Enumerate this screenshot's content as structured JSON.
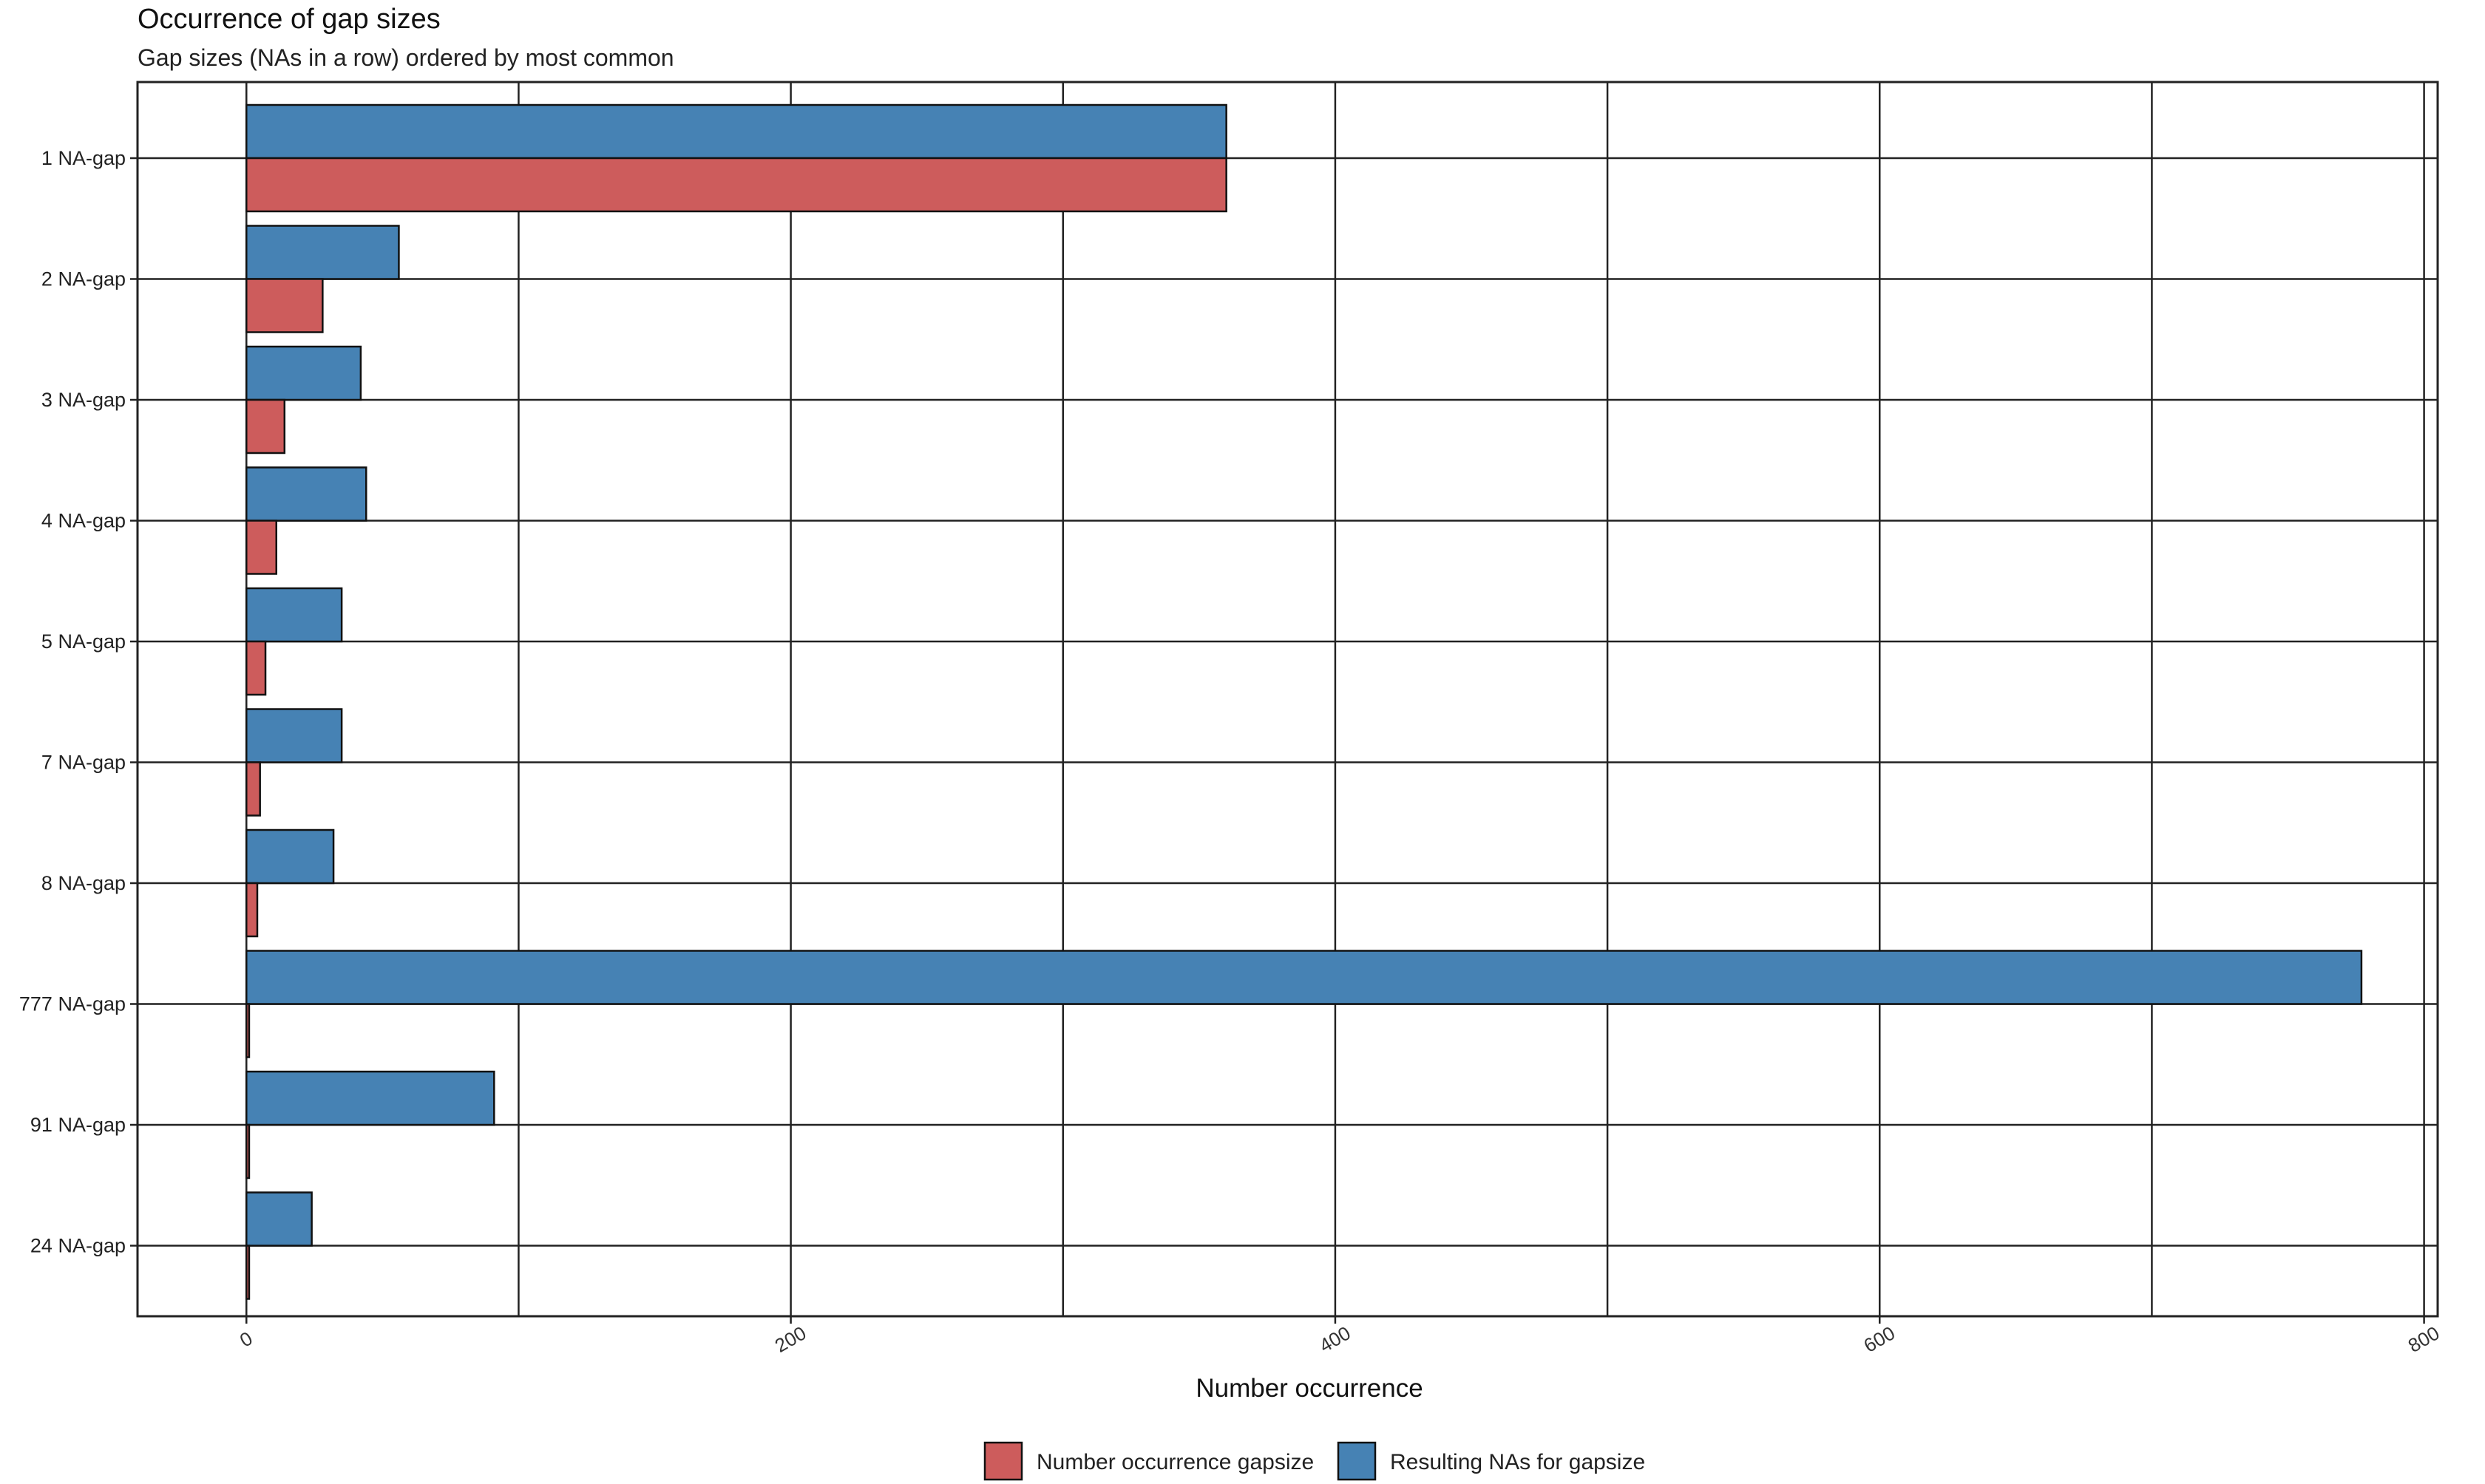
{
  "chart_data": {
    "type": "bar",
    "orientation": "horizontal",
    "title": "Occurrence of gap sizes",
    "subtitle": "Gap sizes (NAs in a row) ordered by most common",
    "xlabel": "Number occurrence",
    "ylabel": "",
    "xlim": [
      -40,
      805
    ],
    "xticks": [
      0,
      200,
      400,
      600,
      800
    ],
    "xtick_labels": [
      "0",
      "200",
      "400",
      "600",
      "800"
    ],
    "grid_x": [
      0,
      100,
      200,
      300,
      400,
      500,
      600,
      700,
      800
    ],
    "grid": true,
    "legend_position": "bottom",
    "categories": [
      "1 NA-gap",
      "2 NA-gap",
      "3 NA-gap",
      "4 NA-gap",
      "5 NA-gap",
      "7 NA-gap",
      "8 NA-gap",
      "777 NA-gap",
      "91 NA-gap",
      "24 NA-gap"
    ],
    "series": [
      {
        "name": "Number occurrence gapsize",
        "color": "#CD5C5C",
        "values": [
          360,
          28,
          14,
          11,
          7,
          5,
          4,
          1,
          1,
          1
        ]
      },
      {
        "name": "Resulting NAs for gapsize",
        "color": "#4682B4",
        "values": [
          360,
          56,
          42,
          44,
          35,
          35,
          32,
          777,
          91,
          24
        ]
      }
    ]
  }
}
